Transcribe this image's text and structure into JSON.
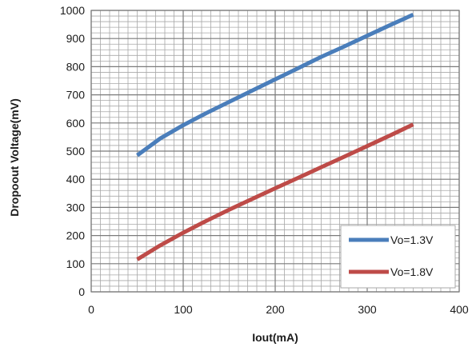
{
  "chart_data": {
    "type": "line",
    "title": "",
    "xlabel": "Iout(mA)",
    "ylabel": "Dropoout Voltage(mV)",
    "xlim": [
      0,
      400
    ],
    "ylim": [
      0,
      1000
    ],
    "x_ticks": [
      0,
      100,
      200,
      300,
      400
    ],
    "y_ticks": [
      0,
      100,
      200,
      300,
      400,
      500,
      600,
      700,
      800,
      900,
      1000
    ],
    "grid": true,
    "minor_grid": true,
    "legend_position": "bottom-right",
    "series": [
      {
        "name": "Vo=1.3V",
        "color": "#4a7ebb",
        "x": [
          50,
          75,
          100,
          125,
          150,
          175,
          200,
          225,
          250,
          275,
          300,
          325,
          350
        ],
        "y": [
          485,
          545,
          592,
          635,
          675,
          715,
          755,
          795,
          835,
          872,
          910,
          948,
          985
        ]
      },
      {
        "name": "Vo=1.8V",
        "color": "#be4b48",
        "x": [
          50,
          75,
          100,
          125,
          150,
          175,
          200,
          225,
          250,
          275,
          300,
          325,
          350
        ],
        "y": [
          115,
          165,
          210,
          252,
          292,
          330,
          368,
          405,
          443,
          480,
          518,
          556,
          595
        ]
      }
    ]
  }
}
